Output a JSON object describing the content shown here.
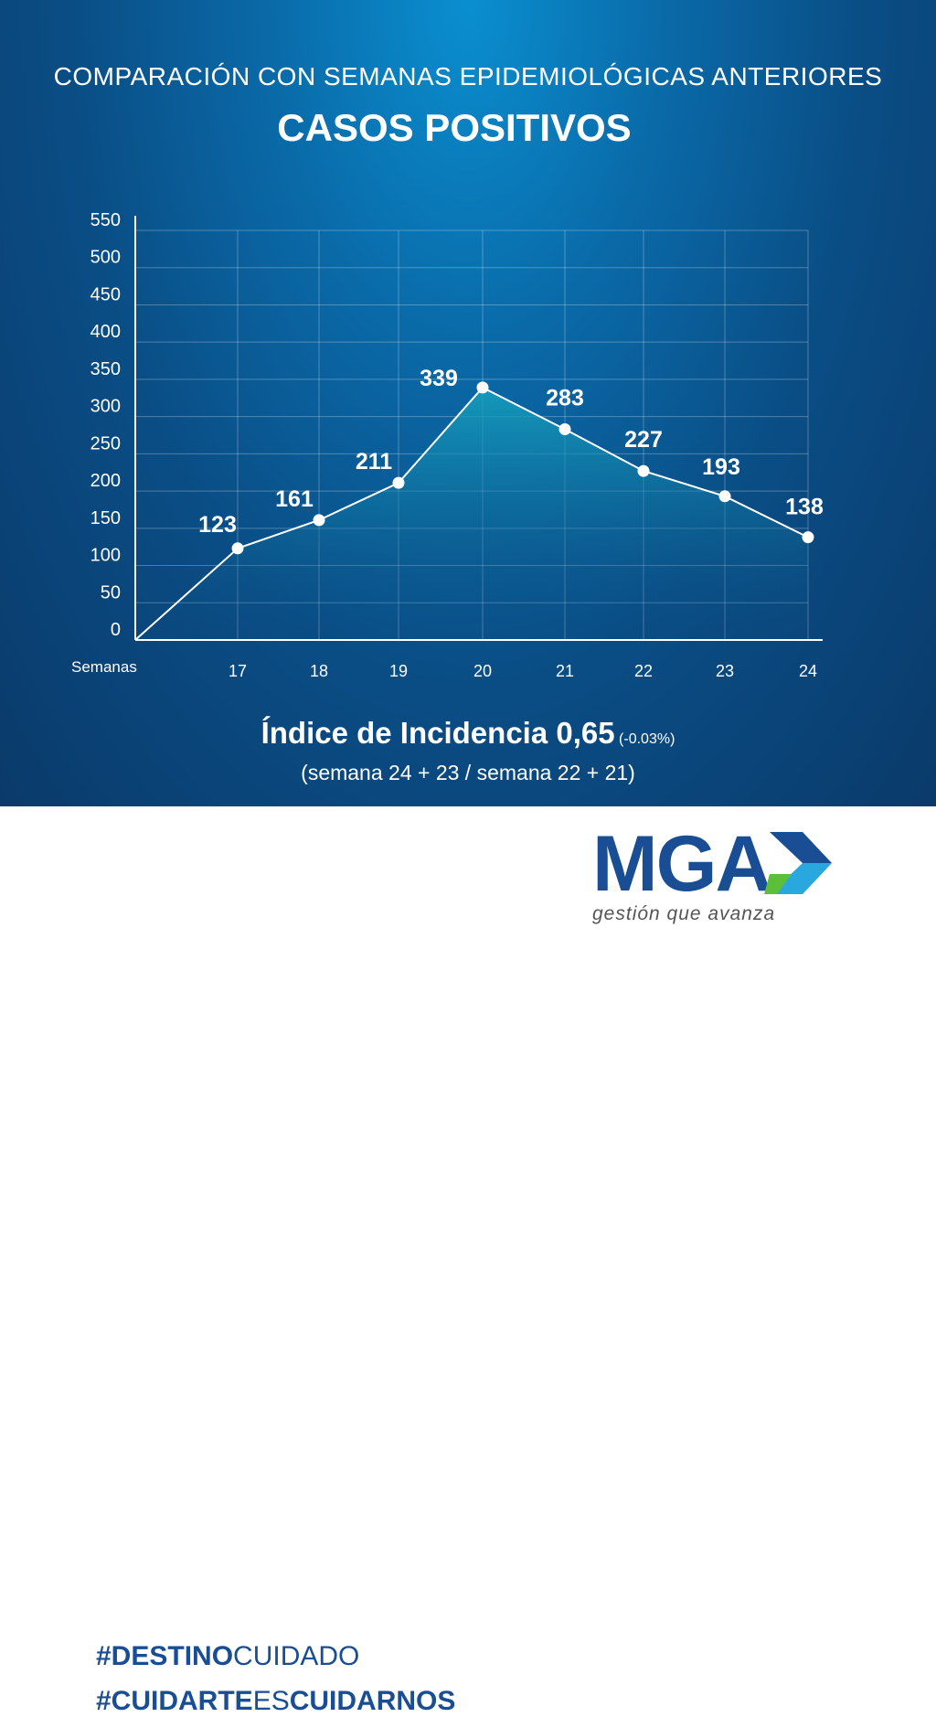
{
  "header": {
    "subtitle": "COMPARACIÓN CON SEMANAS EPIDEMIOLÓGICAS ANTERIORES",
    "title": "CASOS POSITIVOS"
  },
  "chart_data": {
    "type": "line",
    "title": "CASOS POSITIVOS",
    "xlabel": "Semanas",
    "ylabel": "",
    "categories": [
      "17",
      "18",
      "19",
      "20",
      "21",
      "22",
      "23",
      "24"
    ],
    "values": [
      123,
      161,
      211,
      339,
      283,
      227,
      193,
      138
    ],
    "yticks": [
      0,
      50,
      100,
      150,
      200,
      250,
      300,
      350,
      400,
      450,
      500,
      550
    ],
    "ylim": [
      0,
      550
    ],
    "grid": true,
    "legend": "none"
  },
  "incidence": {
    "label": "Índice de Incidencia 0,65",
    "change": "(-0.03%)",
    "formula": "(semana 24 + 23 / semana 22 + 21)"
  },
  "footer": {
    "tag1_bold": "#DESTINO",
    "tag1_light": "CUIDADO",
    "tag2_bold": "#CUIDARTE",
    "tag2_light": "ES",
    "tag2_bold2": "CUIDARNOS",
    "logo": "MGA",
    "slogan": "gestión que avanza"
  },
  "colors": {
    "brand_blue": "#1a4e94",
    "brand_green": "#5bbf3c",
    "brand_light_blue": "#29a8e0"
  }
}
